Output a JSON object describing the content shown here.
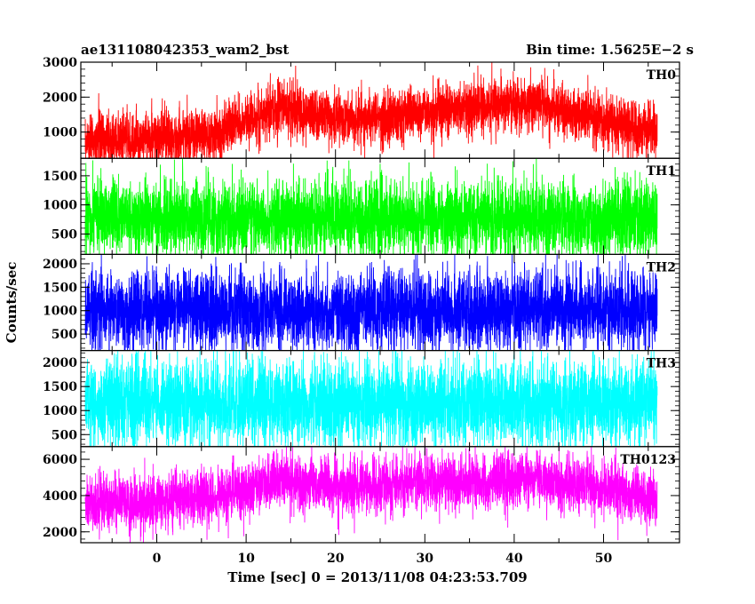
{
  "chart_data": {
    "type": "line",
    "title": "ae131108042353_wam2_bst",
    "subtitle": "Bin time: 1.5625E−2 s",
    "xlabel": "Time [sec] 0 = 2013/11/08 04:23:53.709",
    "ylabel": "Counts/sec",
    "xlim": [
      -8.5,
      58.5
    ],
    "data_x_range": [
      -8,
      56
    ],
    "x_ticks": [
      "0",
      "10",
      "20",
      "30",
      "40",
      "50"
    ],
    "grid": false,
    "panels": [
      {
        "name": "TH0",
        "color": "#ff0000",
        "ylim": [
          250,
          3000
        ],
        "y_ticks": [
          "1000",
          "2000",
          "3000"
        ],
        "trend_x": [
          -8,
          0,
          6,
          8,
          14,
          18,
          24,
          28,
          34,
          40,
          44,
          50,
          56
        ],
        "trend_mean": [
          750,
          820,
          900,
          1150,
          1700,
          1500,
          1350,
          1550,
          1650,
          1850,
          1700,
          1350,
          1000
        ],
        "noise": 380
      },
      {
        "name": "TH1",
        "color": "#00ff00",
        "ylim": [
          150,
          1800
        ],
        "y_ticks": [
          "500",
          "1000",
          "1500"
        ],
        "trend_x": [
          -8,
          56
        ],
        "trend_mean": [
          760,
          760
        ],
        "noise": 330
      },
      {
        "name": "TH2",
        "color": "#0000ff",
        "ylim": [
          150,
          2200
        ],
        "y_ticks": [
          "500",
          "1000",
          "1500",
          "2000"
        ],
        "trend_x": [
          -8,
          56
        ],
        "trend_mean": [
          1000,
          1000
        ],
        "noise": 420
      },
      {
        "name": "TH3",
        "color": "#00ffff",
        "ylim": [
          250,
          2250
        ],
        "y_ticks": [
          "500",
          "1000",
          "1500",
          "2000"
        ],
        "trend_x": [
          -8,
          56
        ],
        "trend_mean": [
          1150,
          1150
        ],
        "noise": 450
      },
      {
        "name": "TH0123",
        "color": "#ff00ff",
        "ylim": [
          1400,
          6700
        ],
        "y_ticks": [
          "2000",
          "4000",
          "6000"
        ],
        "trend_x": [
          -8,
          0,
          8,
          14,
          20,
          26,
          30,
          36,
          40,
          46,
          50,
          56
        ],
        "trend_mean": [
          3500,
          3700,
          4100,
          4800,
          4400,
          4500,
          4800,
          4700,
          4900,
          4700,
          4400,
          3900
        ],
        "noise": 750
      }
    ]
  }
}
